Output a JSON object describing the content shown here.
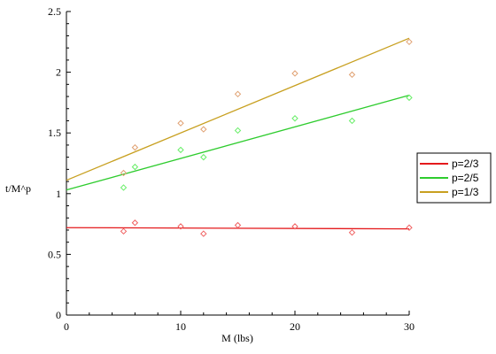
{
  "colors": {
    "series": [
      "#e41a1c",
      "#2ecc2e",
      "#c8a020"
    ],
    "points": [
      "#f06060",
      "#66ee66",
      "#e0a070"
    ],
    "axis": "#000000",
    "legend_border": "#000000"
  },
  "chart_data": {
    "type": "scatter",
    "title": "",
    "xlabel": "M (lbs)",
    "ylabel": "t/M^p",
    "xlim": [
      0,
      30
    ],
    "ylim": [
      0,
      2.5
    ],
    "x_ticks": [
      0,
      10,
      20,
      30
    ],
    "y_ticks": [
      0,
      0.5,
      1,
      1.5,
      2,
      2.5
    ],
    "x_tick_labels": [
      "0",
      "10",
      "20",
      "30"
    ],
    "y_tick_labels": [
      "0",
      "0.5",
      "1",
      "1.5",
      "2",
      "2.5"
    ],
    "grid": false,
    "legend_position": "right",
    "series": [
      {
        "name": "p=2/3",
        "points": [
          [
            5,
            0.69
          ],
          [
            6,
            0.76
          ],
          [
            10,
            0.73
          ],
          [
            12,
            0.67
          ],
          [
            15,
            0.74
          ],
          [
            20,
            0.73
          ],
          [
            25,
            0.68
          ],
          [
            30,
            0.72
          ]
        ],
        "fit": [
          [
            0,
            0.72
          ],
          [
            30,
            0.71
          ]
        ]
      },
      {
        "name": "p=2/5",
        "points": [
          [
            5,
            1.05
          ],
          [
            6,
            1.22
          ],
          [
            10,
            1.36
          ],
          [
            12,
            1.3
          ],
          [
            15,
            1.52
          ],
          [
            20,
            1.62
          ],
          [
            25,
            1.6
          ],
          [
            30,
            1.79
          ]
        ],
        "fit": [
          [
            0,
            1.03
          ],
          [
            30,
            1.81
          ]
        ]
      },
      {
        "name": "p=1/3",
        "points": [
          [
            5,
            1.17
          ],
          [
            6,
            1.38
          ],
          [
            10,
            1.58
          ],
          [
            12,
            1.53
          ],
          [
            15,
            1.82
          ],
          [
            20,
            1.99
          ],
          [
            25,
            1.98
          ],
          [
            30,
            2.25
          ]
        ],
        "fit": [
          [
            0,
            1.11
          ],
          [
            30,
            2.28
          ]
        ]
      }
    ]
  }
}
